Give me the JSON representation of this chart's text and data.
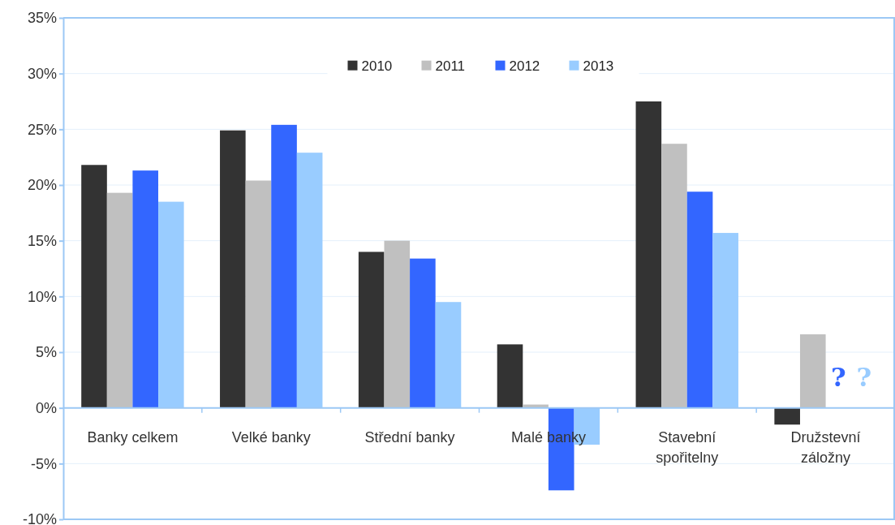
{
  "chart_data": {
    "type": "bar",
    "categories": [
      "Banky celkem",
      "Velké banky",
      "Střední banky",
      "Malé banky",
      "Stavební\nspořitelny",
      "Družstevní\nzáložny"
    ],
    "series": [
      {
        "name": "2010",
        "color": "#333333",
        "values": [
          21.8,
          24.9,
          14.0,
          5.7,
          27.5,
          -1.5
        ]
      },
      {
        "name": "2011",
        "color": "#c0c0c0",
        "values": [
          19.3,
          20.4,
          15.0,
          0.3,
          23.7,
          6.6
        ]
      },
      {
        "name": "2012",
        "color": "#3366ff",
        "values": [
          21.3,
          25.4,
          13.4,
          -7.4,
          19.4,
          null
        ]
      },
      {
        "name": "2013",
        "color": "#99ccff",
        "values": [
          18.5,
          22.9,
          9.5,
          -3.3,
          15.7,
          null
        ]
      }
    ],
    "annotations": [
      {
        "text": "?",
        "x": "Družstevní\nzáložny",
        "y": 2.5
      },
      {
        "text": "?",
        "x": "Družstevní\nzáložny",
        "y": 2.5
      }
    ],
    "ylim": [
      -10,
      35
    ],
    "yticks": [
      {
        "value": -10,
        "label": "-10%"
      },
      {
        "value": -5,
        "label": "-5%"
      },
      {
        "value": 0,
        "label": "0%"
      },
      {
        "value": 5,
        "label": "5%"
      },
      {
        "value": 10,
        "label": "10%"
      },
      {
        "value": 15,
        "label": "15%"
      },
      {
        "value": 20,
        "label": "20%"
      },
      {
        "value": 25,
        "label": "25%"
      },
      {
        "value": 30,
        "label": "30%"
      },
      {
        "value": 35,
        "label": "35%"
      }
    ],
    "grid": "y",
    "legend": "top"
  }
}
